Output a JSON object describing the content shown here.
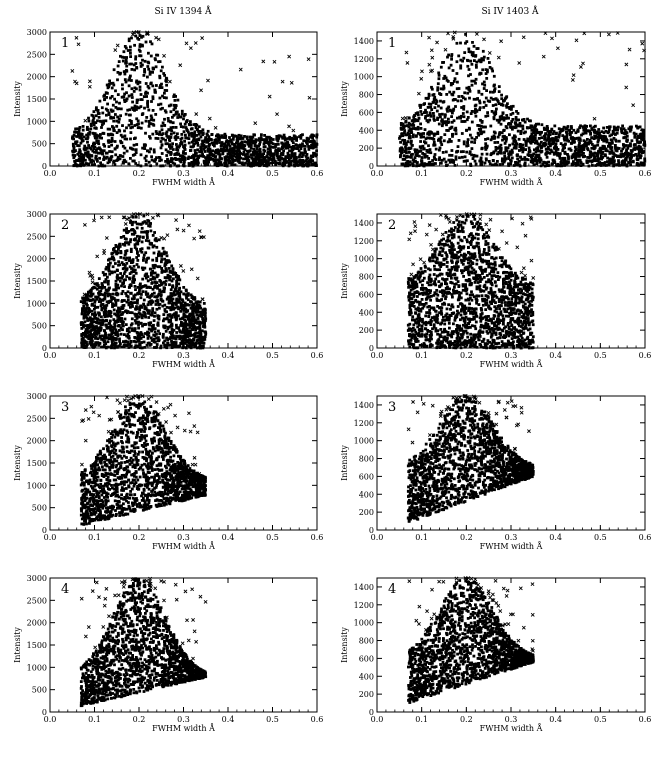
{
  "column_titles": [
    "Si IV 1394 Å",
    "Si IV 1403 Å"
  ],
  "marker_color": "#000000",
  "chart_data": [
    {
      "type": "scatter",
      "panel": "1",
      "title": "Si IV 1394 Å",
      "xlabel": "FWHM width Å",
      "ylabel": "Intensity",
      "xlim": [
        0,
        0.6
      ],
      "ylim": [
        0,
        3000
      ],
      "xticks": [
        0.0,
        0.1,
        0.2,
        0.3,
        0.4,
        0.5,
        0.6
      ],
      "yticks": [
        0,
        500,
        1000,
        1500,
        2000,
        2500,
        3000
      ],
      "x_range": [
        0.05,
        0.6
      ],
      "peak_x": 0.2,
      "peak_y": 3000,
      "tail_y": 700,
      "min_y_at_xmin": 0,
      "min_y_at_xmax": 0,
      "min_y_until_x": 0.6
    },
    {
      "type": "scatter",
      "panel": "1",
      "title": "Si IV 1403 Å",
      "xlabel": "FWHM width Å",
      "ylabel": "Intensity",
      "xlim": [
        0,
        0.6
      ],
      "ylim": [
        0,
        1500
      ],
      "xticks": [
        0.0,
        0.1,
        0.2,
        0.3,
        0.4,
        0.5,
        0.6
      ],
      "yticks": [
        0,
        200,
        400,
        600,
        800,
        1000,
        1200,
        1400
      ],
      "x_range": [
        0.05,
        0.6
      ],
      "peak_x": 0.2,
      "peak_y": 1500,
      "tail_y": 450,
      "min_y_at_xmin": 0,
      "min_y_at_xmax": 0,
      "min_y_until_x": 0.6
    },
    {
      "type": "scatter",
      "panel": "2",
      "title": "",
      "xlabel": "FWHM width Å",
      "ylabel": "Intensity",
      "xlim": [
        0,
        0.6
      ],
      "ylim": [
        0,
        3000
      ],
      "xticks": [
        0.0,
        0.1,
        0.2,
        0.3,
        0.4,
        0.5,
        0.6
      ],
      "yticks": [
        0,
        500,
        1000,
        1500,
        2000,
        2500,
        3000
      ],
      "x_range": [
        0.07,
        0.35
      ],
      "peak_x": 0.2,
      "peak_y": 3000,
      "tail_y": 900,
      "min_y_at_xmin": 0,
      "min_y_at_xmax": 0,
      "min_y_until_x": 0.35
    },
    {
      "type": "scatter",
      "panel": "2",
      "title": "",
      "xlabel": "FWHM width Å",
      "ylabel": "Intensity",
      "xlim": [
        0,
        0.6
      ],
      "ylim": [
        0,
        1500
      ],
      "xticks": [
        0.0,
        0.1,
        0.2,
        0.3,
        0.4,
        0.5,
        0.6
      ],
      "yticks": [
        0,
        200,
        400,
        600,
        800,
        1000,
        1200,
        1400
      ],
      "x_range": [
        0.07,
        0.35
      ],
      "peak_x": 0.2,
      "peak_y": 1500,
      "tail_y": 700,
      "min_y_at_xmin": 0,
      "min_y_at_xmax": 0,
      "min_y_until_x": 0.35
    },
    {
      "type": "scatter",
      "panel": "3",
      "title": "",
      "xlabel": "FWHM width Å",
      "ylabel": "Intensity",
      "xlim": [
        0,
        0.6
      ],
      "ylim": [
        0,
        3000
      ],
      "xticks": [
        0.0,
        0.1,
        0.2,
        0.3,
        0.4,
        0.5,
        0.6
      ],
      "yticks": [
        0,
        500,
        1000,
        1500,
        2000,
        2500,
        3000
      ],
      "x_range": [
        0.07,
        0.35
      ],
      "peak_x": 0.2,
      "peak_y": 3000,
      "tail_y": 1100,
      "min_y_at_xmin": 100,
      "min_y_at_xmax": 780,
      "min_y_until_x": 0.35
    },
    {
      "type": "scatter",
      "panel": "3",
      "title": "",
      "xlabel": "FWHM width Å",
      "ylabel": "Intensity",
      "xlim": [
        0,
        0.6
      ],
      "ylim": [
        0,
        1500
      ],
      "xticks": [
        0.0,
        0.1,
        0.2,
        0.3,
        0.4,
        0.5,
        0.6
      ],
      "yticks": [
        0,
        200,
        400,
        600,
        800,
        1000,
        1200,
        1400
      ],
      "x_range": [
        0.07,
        0.35
      ],
      "peak_x": 0.2,
      "peak_y": 1500,
      "tail_y": 700,
      "min_y_at_xmin": 80,
      "min_y_at_xmax": 600,
      "min_y_until_x": 0.35
    },
    {
      "type": "scatter",
      "panel": "4",
      "title": "",
      "xlabel": "FWHM width Å",
      "ylabel": "Intensity",
      "xlim": [
        0,
        0.6
      ],
      "ylim": [
        0,
        3000
      ],
      "xticks": [
        0.0,
        0.1,
        0.2,
        0.3,
        0.4,
        0.5,
        0.6
      ],
      "yticks": [
        0,
        500,
        1000,
        1500,
        2000,
        2500,
        3000
      ],
      "x_range": [
        0.07,
        0.35
      ],
      "peak_x": 0.2,
      "peak_y": 3000,
      "tail_y": 800,
      "min_y_at_xmin": 130,
      "min_y_at_xmax": 780,
      "min_y_until_x": 0.35
    },
    {
      "type": "scatter",
      "panel": "4",
      "title": "",
      "xlabel": "FWHM width Å",
      "ylabel": "Intensity",
      "xlim": [
        0,
        0.6
      ],
      "ylim": [
        0,
        1500
      ],
      "xticks": [
        0.0,
        0.1,
        0.2,
        0.3,
        0.4,
        0.5,
        0.6
      ],
      "yticks": [
        0,
        200,
        400,
        600,
        800,
        1000,
        1200,
        1400
      ],
      "x_range": [
        0.07,
        0.35
      ],
      "peak_x": 0.2,
      "peak_y": 1500,
      "tail_y": 600,
      "min_y_at_xmin": 100,
      "min_y_at_xmax": 560,
      "min_y_until_x": 0.35
    }
  ]
}
